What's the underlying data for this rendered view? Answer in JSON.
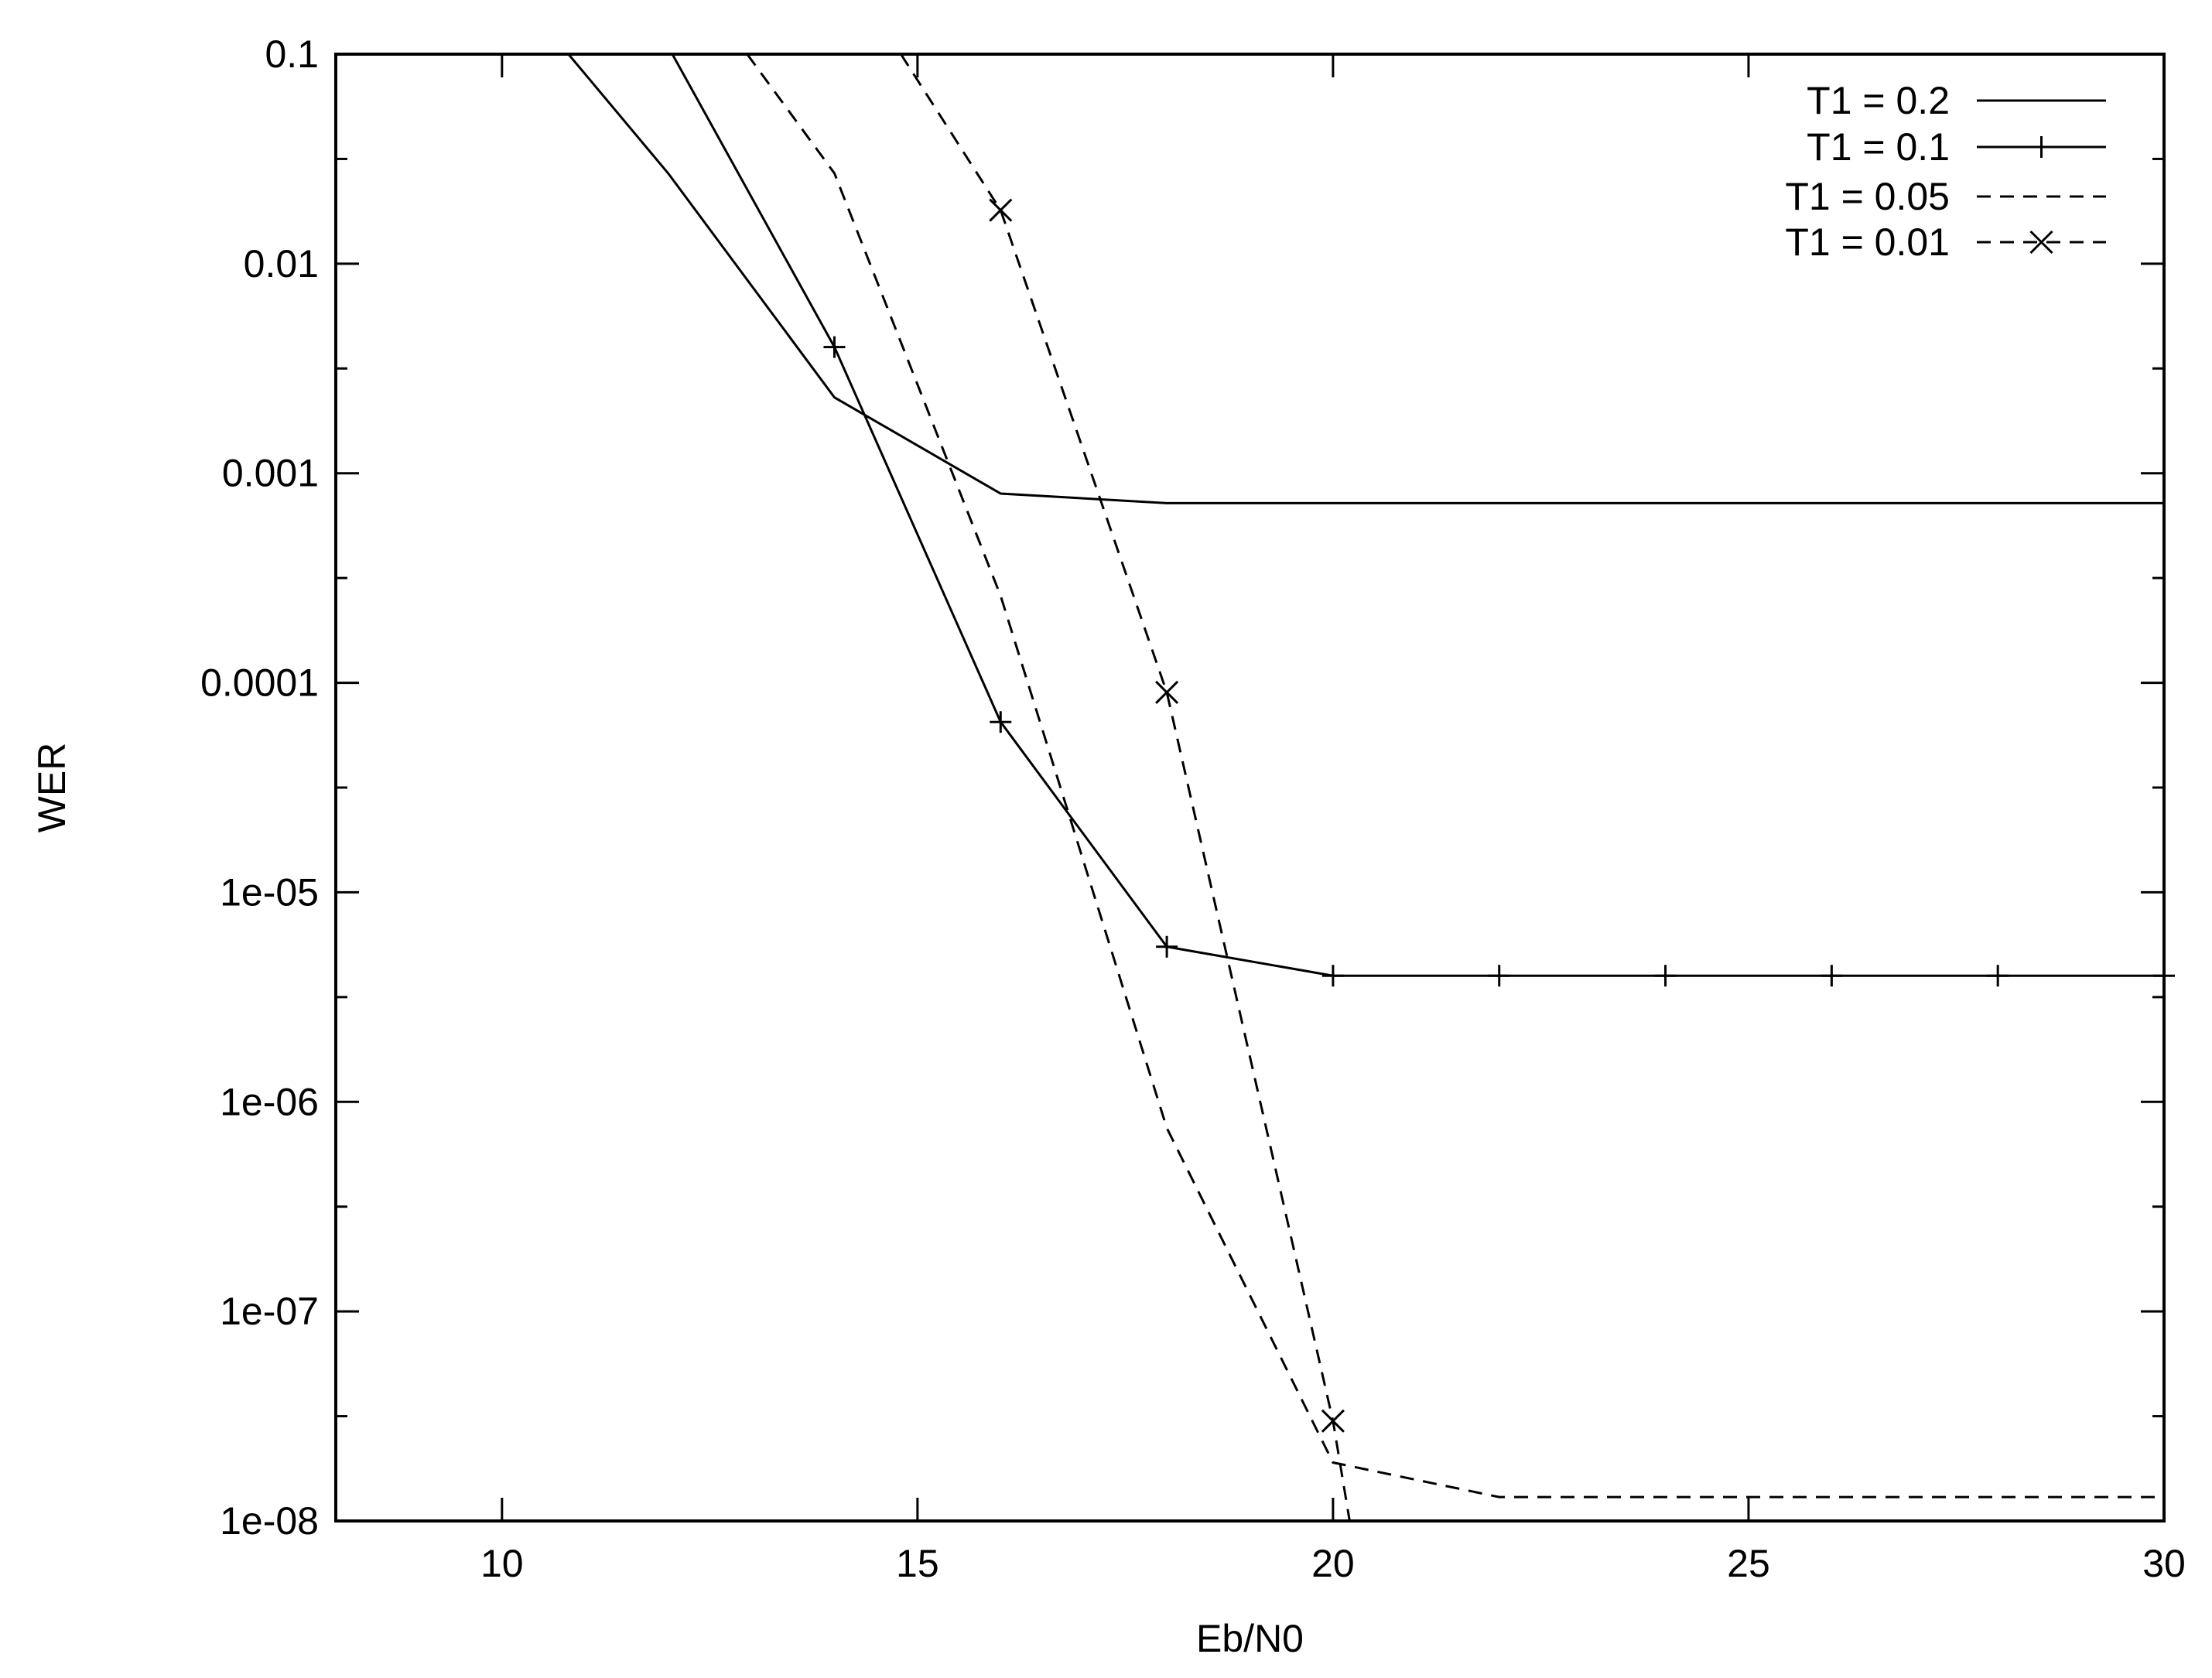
{
  "chart_data": {
    "type": "line",
    "title": "",
    "xlabel": "Eb/N0",
    "ylabel": "WER",
    "xlim": [
      8,
      30
    ],
    "ylim": [
      1e-08,
      0.1
    ],
    "yscale": "log",
    "grid": false,
    "legend_position": "top-right",
    "x_ticks": [
      {
        "value": 10,
        "label": "10"
      },
      {
        "value": 15,
        "label": "15"
      },
      {
        "value": 20,
        "label": "20"
      },
      {
        "value": 25,
        "label": "25"
      },
      {
        "value": 30,
        "label": "30"
      }
    ],
    "y_ticks": [
      {
        "value": 0.1,
        "label": "0.1"
      },
      {
        "value": 0.01,
        "label": "0.01"
      },
      {
        "value": 0.001,
        "label": "0.001"
      },
      {
        "value": 0.0001,
        "label": "0.0001"
      },
      {
        "value": 1e-05,
        "label": "1e-05"
      },
      {
        "value": 1e-06,
        "label": "1e-06"
      },
      {
        "value": 1e-07,
        "label": "1e-07"
      },
      {
        "value": 1e-08,
        "label": "1e-08"
      }
    ],
    "series": [
      {
        "name": "T1 = 0.2",
        "dash": "solid",
        "marker": "none",
        "x": [
          10.8,
          12,
          14,
          16,
          18,
          20,
          22,
          24,
          26,
          28,
          30
        ],
        "y": [
          0.1,
          0.027,
          0.0023,
          0.0008,
          0.00072,
          0.00072,
          0.00072,
          0.00072,
          0.00072,
          0.00072,
          0.00072
        ]
      },
      {
        "name": "T1 = 0.1",
        "dash": "solid",
        "marker": "plus",
        "x": [
          12.05,
          14,
          16,
          18,
          20,
          22,
          24,
          26,
          28,
          30
        ],
        "y": [
          0.1,
          0.004,
          6.5e-05,
          5.5e-06,
          4e-06,
          4e-06,
          4e-06,
          4e-06,
          4e-06,
          4e-06
        ]
      },
      {
        "name": "T1 = 0.05",
        "dash": "dashed",
        "marker": "none",
        "x": [
          12.95,
          14,
          16,
          18,
          20,
          22,
          24,
          26,
          28,
          30
        ],
        "y": [
          0.1,
          0.027,
          0.00026,
          7.5e-07,
          1.9e-08,
          1.3e-08,
          1.3e-08,
          1.3e-08,
          1.3e-08,
          1.3e-08
        ]
      },
      {
        "name": "T1 = 0.01",
        "dash": "dashed",
        "marker": "x",
        "x": [
          14.8,
          16,
          18,
          20,
          20.2
        ],
        "y": [
          0.1,
          0.018,
          9e-05,
          3e-08,
          1e-08
        ]
      }
    ]
  }
}
